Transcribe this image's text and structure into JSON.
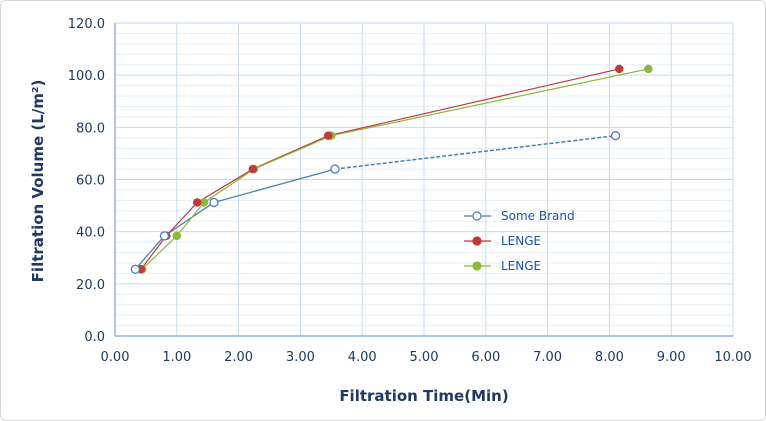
{
  "chart_data": {
    "type": "line",
    "title": "",
    "xlabel": "Filtration Time(Min)",
    "ylabel": "Filtration Volume (L/m²)",
    "xlim": [
      0,
      10
    ],
    "ylim": [
      0,
      120
    ],
    "xticks": [
      "0.00",
      "1.00",
      "2.00",
      "3.00",
      "4.00",
      "5.00",
      "6.00",
      "7.00",
      "8.00",
      "9.00",
      "10.00"
    ],
    "yticks": [
      "0.0",
      "20.0",
      "40.0",
      "60.0",
      "80.0",
      "100.0",
      "120.0"
    ],
    "grid": true,
    "legend_position": "center-right",
    "series": [
      {
        "name": "Some Brand",
        "color": "#4a7ebb",
        "marker": "open-circle",
        "x": [
          0.33,
          0.8,
          1.6,
          3.56,
          8.1
        ],
        "y": [
          25.6,
          38.4,
          51.2,
          64,
          76.8
        ]
      },
      {
        "name": "LENGE",
        "color": "#c0393b",
        "marker": "filled-circle",
        "x": [
          0.42,
          0.83,
          1.33,
          2.23,
          3.45,
          8.16
        ],
        "y": [
          25.6,
          38.4,
          51.2,
          64,
          76.8,
          102.4
        ]
      },
      {
        "name": "LENGE",
        "color": "#8cb83a",
        "marker": "filled-circle",
        "x": [
          0.44,
          1.0,
          1.44,
          2.25,
          3.5,
          8.63
        ],
        "y": [
          25.6,
          38.4,
          51.2,
          64,
          76.8,
          102.4
        ]
      }
    ]
  }
}
